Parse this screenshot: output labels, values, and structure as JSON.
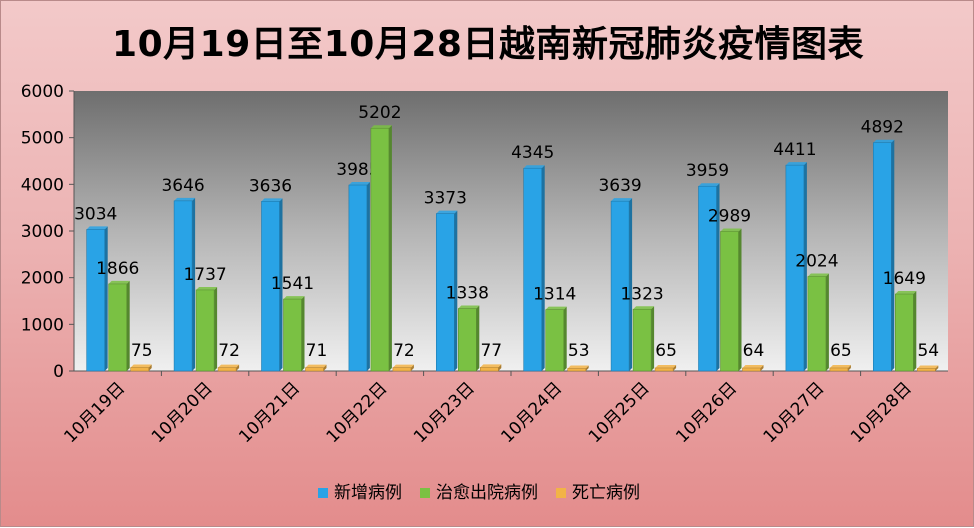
{
  "chart_data": {
    "type": "bar",
    "title": "10月19日至10月28日越南新冠肺炎疫情图表",
    "categories": [
      "10月19日",
      "10月20日",
      "10月21日",
      "10月22日",
      "10月23日",
      "10月24日",
      "10月25日",
      "10月26日",
      "10月27日",
      "10月28日"
    ],
    "series": [
      {
        "name": "新增病例",
        "color": "#29a3e6",
        "values": [
          3034,
          3646,
          3636,
          3985,
          3373,
          4345,
          3639,
          3959,
          4411,
          4892
        ]
      },
      {
        "name": "治愈出院病例",
        "color": "#7ac143",
        "values": [
          1866,
          1737,
          1541,
          5202,
          1338,
          1314,
          1323,
          2989,
          2024,
          1649
        ]
      },
      {
        "name": "死亡病例",
        "color": "#f2b347",
        "values": [
          75,
          72,
          71,
          72,
          77,
          53,
          65,
          64,
          65,
          54
        ]
      }
    ],
    "ylim": [
      0,
      6000
    ],
    "yticks": [
      0,
      1000,
      2000,
      3000,
      4000,
      5000,
      6000
    ],
    "grid": false,
    "legend_position": "bottom"
  }
}
